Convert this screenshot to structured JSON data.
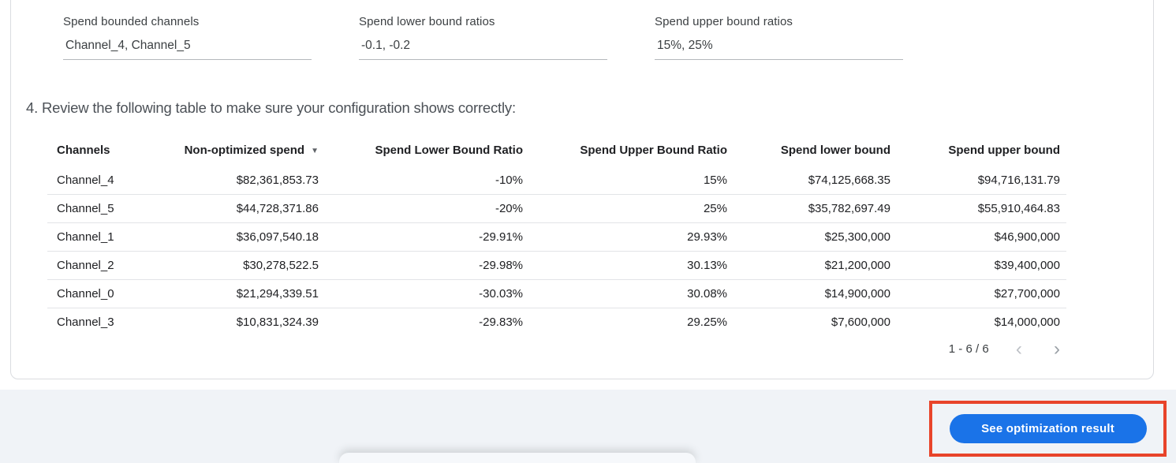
{
  "fields": [
    {
      "label": "Spend bounded channels",
      "value": "Channel_4, Channel_5"
    },
    {
      "label": "Spend lower bound ratios",
      "value": "-0.1, -0.2"
    },
    {
      "label": "Spend upper bound ratios",
      "value": "15%, 25%"
    }
  ],
  "instruction": "4. Review the following table to make sure your configuration shows correctly:",
  "table": {
    "columns": [
      "Channels",
      "Non-optimized spend",
      "Spend Lower Bound Ratio",
      "Spend Upper Bound Ratio",
      "Spend lower bound",
      "Spend upper bound"
    ],
    "sort_column": "Non-optimized spend",
    "sort_icon": "▼",
    "rows": [
      [
        "Channel_4",
        "$82,361,853.73",
        "-10%",
        "15%",
        "$74,125,668.35",
        "$94,716,131.79"
      ],
      [
        "Channel_5",
        "$44,728,371.86",
        "-20%",
        "25%",
        "$35,782,697.49",
        "$55,910,464.83"
      ],
      [
        "Channel_1",
        "$36,097,540.18",
        "-29.91%",
        "29.93%",
        "$25,300,000",
        "$46,900,000"
      ],
      [
        "Channel_2",
        "$30,278,522.5",
        "-29.98%",
        "30.13%",
        "$21,200,000",
        "$39,400,000"
      ],
      [
        "Channel_0",
        "$21,294,339.51",
        "-30.03%",
        "30.08%",
        "$14,900,000",
        "$27,700,000"
      ],
      [
        "Channel_3",
        "$10,831,324.39",
        "-29.83%",
        "29.25%",
        "$7,600,000",
        "$14,000,000"
      ]
    ],
    "pagination": {
      "label": "1 - 6 / 6",
      "prev_icon": "‹",
      "next_icon": "›"
    }
  },
  "action": {
    "button_label": "See optimization result"
  },
  "colors": {
    "primary_blue": "#1a73e8",
    "annotation_red": "#e8442a",
    "strip_gray": "#f0f3f7"
  }
}
